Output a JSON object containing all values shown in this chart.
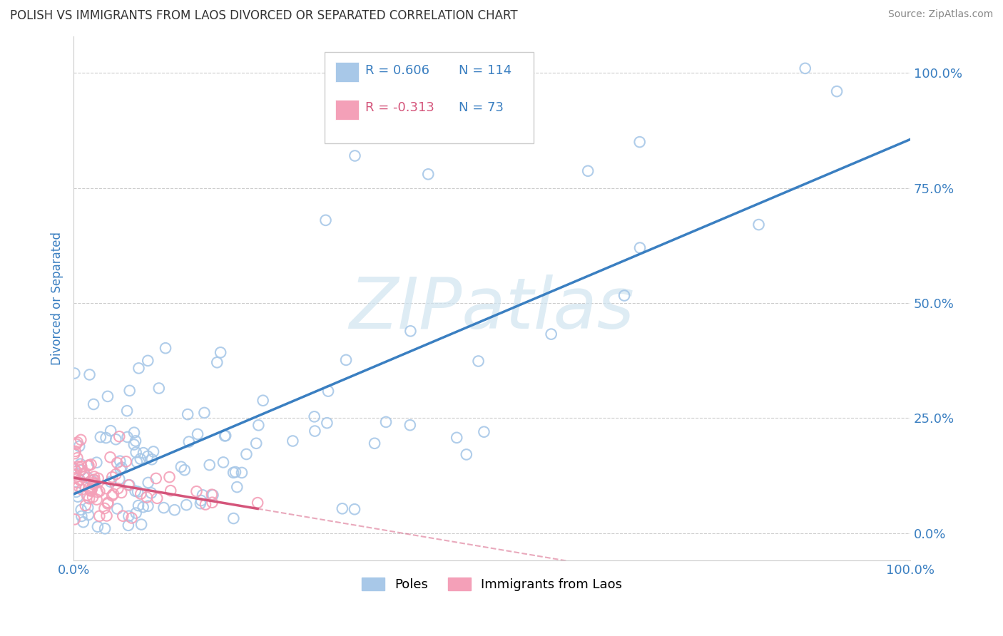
{
  "title": "POLISH VS IMMIGRANTS FROM LAOS DIVORCED OR SEPARATED CORRELATION CHART",
  "source": "Source: ZipAtlas.com",
  "ylabel": "Divorced or Separated",
  "watermark": "ZIPatlas",
  "legend_blue_r": "R = 0.606",
  "legend_blue_n": "N = 114",
  "legend_pink_r": "R = -0.313",
  "legend_pink_n": "N = 73",
  "legend_label_blue": "Poles",
  "legend_label_pink": "Immigrants from Laos",
  "blue_color": "#a8c8e8",
  "pink_color": "#f4a0b8",
  "blue_line_color": "#3a7fc1",
  "pink_line_color": "#d4547a",
  "r_blue_color": "#3a7fc1",
  "r_pink_color": "#d4547a",
  "n_color": "#3a7fc1",
  "title_color": "#333333",
  "axis_label_color": "#3a7fc1",
  "tick_color": "#3a7fc1",
  "grid_color": "#cccccc",
  "background_color": "#ffffff",
  "blue_R": 0.606,
  "pink_R": -0.313,
  "blue_N": 114,
  "pink_N": 73,
  "xmin": 0.0,
  "xmax": 1.0,
  "ymin": -0.06,
  "ymax": 1.08,
  "yticks": [
    0.0,
    0.25,
    0.5,
    0.75,
    1.0
  ],
  "ytick_labels": [
    "0.0%",
    "25.0%",
    "50.0%",
    "75.0%",
    "100.0%"
  ],
  "xticks": [
    0.0,
    1.0
  ],
  "xtick_labels": [
    "0.0%",
    "100.0%"
  ]
}
